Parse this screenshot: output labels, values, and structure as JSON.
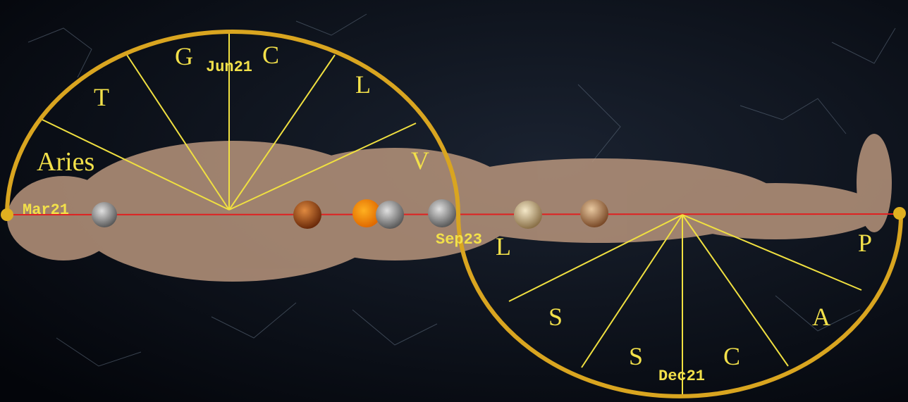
{
  "dates": {
    "march": "Mar21",
    "june": "Jun21",
    "september": "Sep23",
    "december": "Dec21"
  },
  "signs": [
    "Aries",
    "T",
    "G",
    "C",
    "L",
    "V",
    "L",
    "S",
    "S",
    "C",
    "A",
    "P"
  ]
}
